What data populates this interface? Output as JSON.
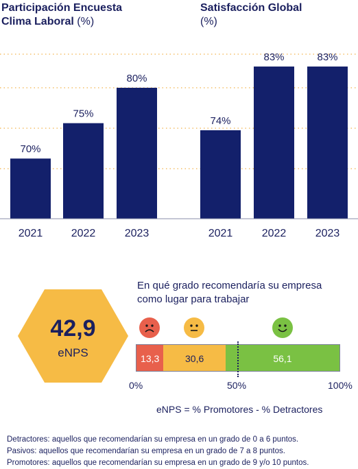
{
  "chart_data": [
    {
      "type": "bar",
      "title": "Participación Encuesta",
      "subtitle_bold": "Clima Laboral",
      "unit": "(%)",
      "categories": [
        "2021",
        "2022",
        "2023"
      ],
      "values": [
        70,
        75,
        80
      ],
      "value_labels": [
        "70%",
        "75%",
        "80%"
      ],
      "color": "#13206b",
      "ylim": [
        50,
        85
      ],
      "grid": true
    },
    {
      "type": "bar",
      "title": "Satisfacción Global",
      "unit": "(%)",
      "categories": [
        "2021",
        "2022",
        "2023"
      ],
      "values": [
        74,
        83,
        83
      ],
      "value_labels": [
        "74%",
        "83%",
        "83%"
      ],
      "color": "#13206b",
      "ylim": [
        50,
        85
      ],
      "grid": true
    }
  ],
  "enps": {
    "value": "42,9",
    "label": "eNPS",
    "hex_color": "#f6bb45"
  },
  "question": {
    "line1": "En qué grado recomendaría su empresa",
    "line2": "como lugar para trabajar"
  },
  "stacked_bar": {
    "segments": [
      {
        "name": "Detractores",
        "value": 13.3,
        "label": "13,3",
        "color": "#e8604c",
        "face": "sad-face-icon"
      },
      {
        "name": "Pasivos",
        "value": 30.6,
        "label": "30,6",
        "color": "#f6bb45",
        "face": "neutral-face-icon"
      },
      {
        "name": "Promotores",
        "value": 56.1,
        "label": "56,1",
        "color": "#7ac143",
        "face": "happy-face-icon"
      }
    ],
    "scale": [
      "0%",
      "50%",
      "100%"
    ],
    "midline": 50
  },
  "formula": "eNPS = % Promotores - % Detractores",
  "notes": [
    "Detractores: aquellos que recomendarían su empresa en un grado de 0 a 6 puntos.",
    "Pasivos: aquellos que recomendarían su empresa en un grado de 7 a 8 puntos.",
    "Promotores: aquellos que recomendarían su empresa en un grado de 9 y/o 10 puntos."
  ]
}
